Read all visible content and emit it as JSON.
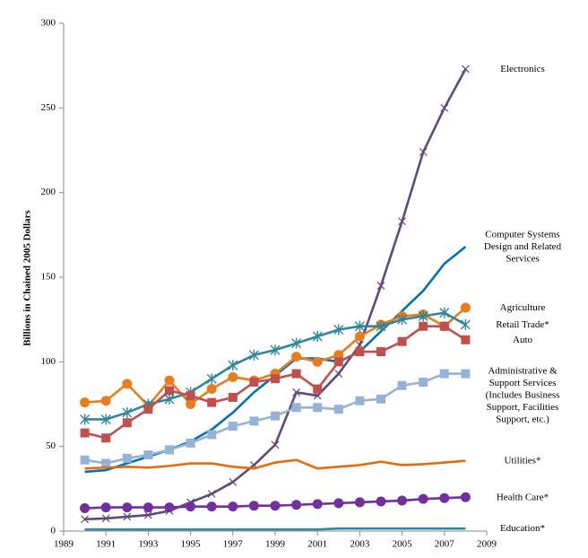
{
  "chart_data": {
    "type": "line",
    "y_label": "Billions in Chained 2005 Dollars",
    "x": [
      1990,
      1991,
      1992,
      1993,
      1994,
      1995,
      1996,
      1997,
      1998,
      1999,
      2000,
      2001,
      2002,
      2003,
      2004,
      2005,
      2006,
      2007,
      2008
    ],
    "xlim": [
      1989,
      2009
    ],
    "xticks": [
      1989,
      1991,
      1993,
      1995,
      1997,
      1999,
      2001,
      2003,
      2005,
      2007,
      2009
    ],
    "ylim": [
      0,
      300
    ],
    "yticks": [
      0,
      50,
      100,
      150,
      200,
      250,
      300
    ],
    "grid": false,
    "series": [
      {
        "name": "Electronics",
        "color": "#604a7b",
        "marker": "x",
        "values": [
          7,
          7.5,
          8.5,
          9.5,
          12,
          17,
          22,
          29,
          39,
          51,
          82,
          80,
          93,
          110,
          145,
          183,
          224,
          250,
          273
        ]
      },
      {
        "name": "Computer Systems Design and Related Services",
        "color": "#0070c0",
        "marker": "none",
        "values": [
          35,
          36,
          40,
          44,
          48,
          53,
          60,
          70,
          82,
          92,
          102,
          102,
          100,
          106,
          118,
          130,
          142,
          158,
          168
        ]
      },
      {
        "name": "Agriculture",
        "color": "#e87d1e",
        "marker": "circle",
        "values": [
          76,
          77,
          87,
          74,
          89,
          75,
          84,
          91,
          89,
          93,
          103,
          100,
          104,
          115,
          122,
          127,
          128,
          121,
          132
        ]
      },
      {
        "name": "Retail Trade*",
        "color": "#31859c",
        "marker": "star",
        "values": [
          66,
          66,
          70,
          75,
          78,
          82,
          90,
          98,
          104,
          107,
          111,
          115,
          119,
          121,
          121,
          125,
          127,
          129,
          122
        ]
      },
      {
        "name": "Auto",
        "color": "#c0504d",
        "marker": "square",
        "values": [
          58,
          55,
          64,
          72,
          83,
          80,
          76,
          79,
          88,
          90,
          93,
          84,
          100,
          106,
          106,
          112,
          121,
          121,
          113
        ]
      },
      {
        "name": "Administrative & Support Services (Includes Business Support, Facilities Support, etc.)",
        "color": "#95b3d7",
        "marker": "square",
        "values": [
          42,
          40,
          43,
          45,
          48,
          52,
          57,
          62,
          65,
          68,
          73,
          73,
          72,
          77,
          78,
          86,
          88,
          93,
          93
        ]
      },
      {
        "name": "Utilities*",
        "color": "#e46c0a",
        "marker": "none",
        "values": [
          37,
          37.5,
          38,
          37.5,
          38.5,
          40,
          40,
          38,
          37,
          40.5,
          42,
          37,
          38,
          39,
          41,
          39,
          39.5,
          40.5,
          41.5
        ]
      },
      {
        "name": "Health Care*",
        "color": "#7030a0",
        "marker": "circle",
        "values": [
          13.5,
          14,
          14,
          14,
          14,
          14.5,
          14.5,
          14.5,
          15,
          15,
          15.5,
          16,
          16.5,
          17,
          17.5,
          18,
          19,
          19.5,
          20
        ]
      },
      {
        "name": "Education*",
        "color": "#31859c",
        "marker": "none",
        "values": [
          1,
          1,
          1,
          1,
          1,
          1,
          1,
          1,
          1,
          1,
          1,
          1,
          1.5,
          1.5,
          1.5,
          1.5,
          1.5,
          1.5,
          1.5
        ]
      }
    ]
  }
}
